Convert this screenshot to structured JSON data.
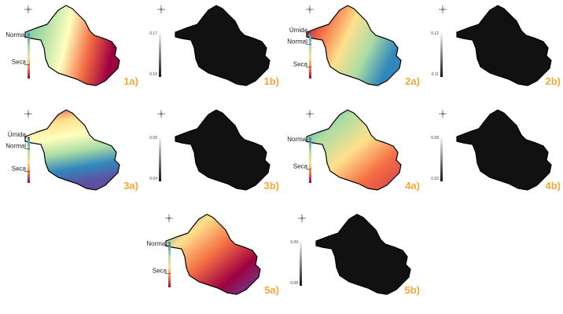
{
  "panels": [
    {
      "label": "1a)",
      "legend": [
        "Normal",
        "Seca"
      ]
    },
    {
      "label": "1b)",
      "ticks": [
        "0.17",
        "0.16"
      ]
    },
    {
      "label": "2a)",
      "legend": [
        "Úmida",
        "Normal",
        "Seca"
      ]
    },
    {
      "label": "2b)",
      "ticks": [
        "0.12",
        "0.11"
      ]
    },
    {
      "label": "3a)",
      "legend": [
        "Úmida",
        "Normal",
        "Seca"
      ]
    },
    {
      "label": "3b)",
      "ticks": [
        "0.09",
        "0.04"
      ]
    },
    {
      "label": "4a)",
      "legend": [
        "Normal",
        "Seca"
      ]
    },
    {
      "label": "4b)",
      "ticks": [
        "0.08",
        "0.02"
      ]
    },
    {
      "label": "5a)",
      "legend": [
        "Normal",
        "Seca"
      ]
    },
    {
      "label": "5b)",
      "ticks": [
        "0.09",
        "0.08"
      ]
    }
  ]
}
